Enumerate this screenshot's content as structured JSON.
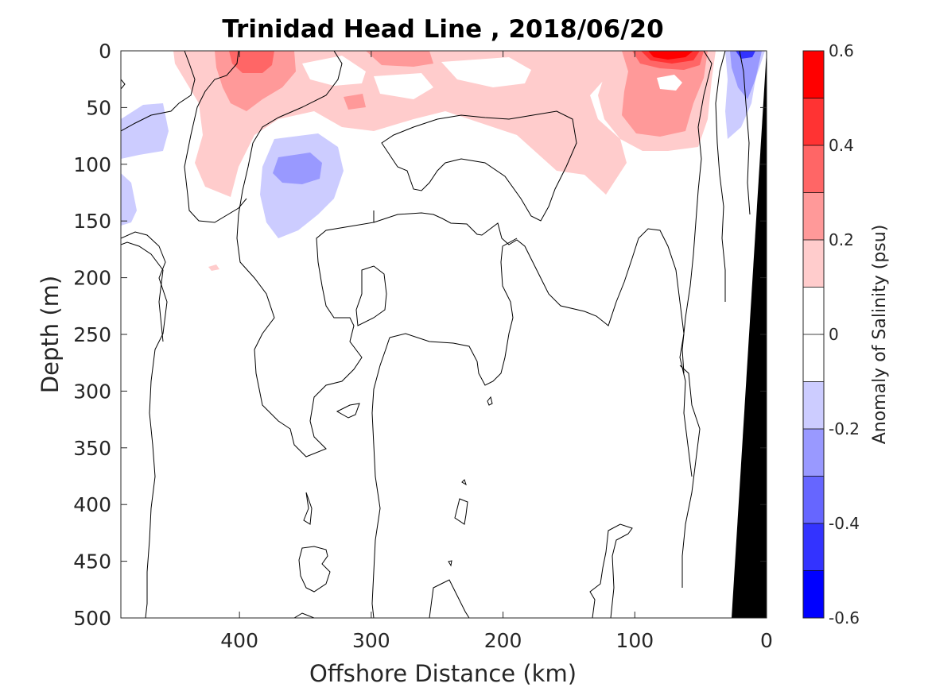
{
  "chart_data": {
    "type": "contour",
    "title": "Trinidad Head Line , 2018/06/20",
    "xlabel": "Offshore Distance (km)",
    "ylabel": "Depth (m)",
    "xlim": [
      490,
      0
    ],
    "ylim": [
      500,
      0
    ],
    "x_reversed": true,
    "y_reversed": true,
    "x_ticks": [
      400,
      300,
      200,
      100,
      0
    ],
    "y_ticks": [
      0,
      50,
      100,
      150,
      200,
      250,
      300,
      350,
      400,
      450,
      500
    ],
    "colorbar": {
      "label": "Anomaly of Salinity (psu)",
      "range": [
        -0.6,
        0.6
      ],
      "ticks": [
        0.6,
        0.4,
        0.2,
        0,
        -0.2,
        -0.4,
        -0.6
      ],
      "tick_labels": [
        "0.6",
        "0.4",
        "0.2",
        "0",
        "-0.2",
        "-0.4",
        "-0.6"
      ],
      "levels": [
        {
          "range": [
            0.5,
            0.6
          ],
          "color": "#ff0000"
        },
        {
          "range": [
            0.4,
            0.5
          ],
          "color": "#ff3333"
        },
        {
          "range": [
            0.3,
            0.4
          ],
          "color": "#ff6666"
        },
        {
          "range": [
            0.2,
            0.3
          ],
          "color": "#ff9999"
        },
        {
          "range": [
            0.1,
            0.2
          ],
          "color": "#ffcccc"
        },
        {
          "range": [
            0.0,
            0.1
          ],
          "color": "#ffffff"
        },
        {
          "range": [
            -0.1,
            0.0
          ],
          "color": "#ffffff"
        },
        {
          "range": [
            -0.2,
            -0.1
          ],
          "color": "#ccccff"
        },
        {
          "range": [
            -0.3,
            -0.2
          ],
          "color": "#9999ff"
        },
        {
          "range": [
            -0.4,
            -0.3
          ],
          "color": "#6666ff"
        },
        {
          "range": [
            -0.5,
            -0.4
          ],
          "color": "#3333ff"
        },
        {
          "range": [
            -0.6,
            -0.5
          ],
          "color": "#0000ff"
        }
      ]
    },
    "anomaly_regions": [
      {
        "name": "positive-nearshore-upper",
        "value": 0.15,
        "x_range": [
          120,
          40
        ],
        "depth_range": [
          0,
          125
        ]
      },
      {
        "name": "positive-core-nearshore",
        "value": 0.55,
        "x_range": [
          90,
          50
        ],
        "depth_range": [
          0,
          10
        ]
      },
      {
        "name": "positive-offshore-upper",
        "value": 0.15,
        "x_range": [
          450,
          130
        ],
        "depth_range": [
          0,
          130
        ]
      },
      {
        "name": "positive-offshore-core",
        "value": 0.35,
        "x_range": [
          420,
          360
        ],
        "depth_range": [
          0,
          40
        ]
      },
      {
        "name": "negative-subsurface-eddy",
        "value": -0.25,
        "x_range": [
          385,
          330
        ],
        "depth_range": [
          80,
          170
        ]
      },
      {
        "name": "negative-far-offshore",
        "value": -0.15,
        "x_range": [
          490,
          450
        ],
        "depth_range": [
          40,
          150
        ]
      },
      {
        "name": "negative-coastal-surface",
        "value": -0.35,
        "x_range": [
          40,
          10
        ],
        "depth_range": [
          0,
          80
        ]
      }
    ],
    "seafloor_color": "#000000"
  }
}
